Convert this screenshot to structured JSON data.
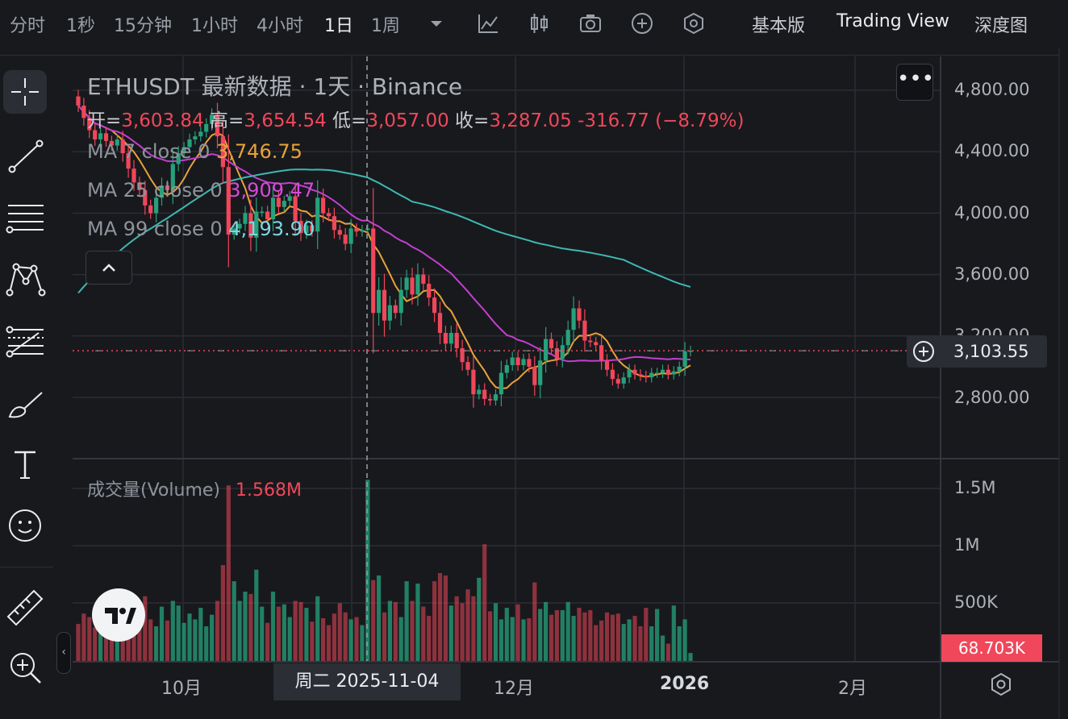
{
  "toolbar": {
    "intervals": [
      "分时",
      "1秒",
      "15分钟",
      "1小时",
      "4小时",
      "1日",
      "1周"
    ],
    "active_interval": "1日",
    "views": [
      "基本版",
      "Trading View",
      "深度图"
    ],
    "icons": [
      "chevron-down-icon",
      "indicator-line-icon",
      "candles-icon",
      "camera-icon",
      "plus-circle-icon",
      "hexagon-settings-icon"
    ]
  },
  "left_tools": [
    "crosshair-icon",
    "trend-line-icon",
    "horizontal-lines-icon",
    "pattern-icon",
    "fib-icon",
    "brush-icon",
    "text-icon",
    "emoji-icon",
    "ruler-icon",
    "zoom-in-icon"
  ],
  "legend": {
    "title": "ETHUSDT 最新数据 · 1天 · Binance",
    "ohlc": [
      {
        "label": "开=",
        "value": "3,603.84"
      },
      {
        "label": "高=",
        "value": "3,654.54"
      },
      {
        "label": "低=",
        "value": "3,057.00"
      },
      {
        "label": "收=",
        "value": "3,287.05"
      }
    ],
    "change": "-316.77 (−8.79%)",
    "ma7": {
      "label": "MA 7 close 0",
      "value": "3,746.75"
    },
    "ma25": {
      "label": "MA 25 close 0",
      "value": "3,909.47"
    },
    "ma99": {
      "label": "MA 99 close 0",
      "value": "4,193.90"
    },
    "more": "•••"
  },
  "price_axis": {
    "ticks": [
      "4,800.00",
      "4,400.00",
      "4,000.00",
      "3,600.00",
      "3,200.00",
      "2,800.00"
    ],
    "current_price": "3,103.55"
  },
  "volume": {
    "label": "成交量(Volume)",
    "value": "1.568M",
    "ticks": [
      "1.5M",
      "1M",
      "500K"
    ],
    "current": "68.703K"
  },
  "time_axis": {
    "labels": [
      {
        "text": "10月",
        "bold": false
      },
      {
        "text": "12月",
        "bold": false
      },
      {
        "text": "2026",
        "bold": true
      },
      {
        "text": "2月",
        "bold": false
      }
    ],
    "crosshair_date": "周二 2025-11-04"
  },
  "colors": {
    "up": "#26a17b",
    "down": "#f0475a",
    "ma7": "#e8a23a",
    "ma25": "#c23fd0",
    "ma99": "#3eb8b4",
    "background": "#18191d"
  },
  "chart_data": {
    "type": "candlestick",
    "symbol": "ETHUSDT",
    "interval": "1天",
    "exchange": "Binance",
    "ylim": [
      2600,
      5000
    ],
    "x_start": "2025-09-12",
    "x_end": "2026-01-04",
    "selected": {
      "date": "2025-11-04",
      "open": 3603.84,
      "high": 3654.54,
      "low": 3057.0,
      "close": 3287.05
    },
    "close": [
      4700,
      4620,
      4540,
      4480,
      4520,
      4470,
      4440,
      4480,
      4390,
      4290,
      4200,
      4150,
      4050,
      4000,
      4100,
      4180,
      4150,
      4320,
      4390,
      4430,
      4480,
      4500,
      4530,
      4580,
      4640,
      4500,
      4300,
      3860,
      3900,
      3930,
      4000,
      3840,
      4010,
      4010,
      3960,
      4100,
      4040,
      4080,
      4110,
      3950,
      3870,
      3920,
      3880,
      4100,
      4000,
      3980,
      3890,
      3860,
      3800,
      3900,
      3880,
      3890,
      3900,
      3350,
      3500,
      3300,
      3400,
      3350,
      3500,
      3580,
      3470,
      3600,
      3540,
      3450,
      3350,
      3220,
      3150,
      3220,
      3120,
      3030,
      2980,
      2820,
      2850,
      2790,
      2780,
      2820,
      2960,
      3010,
      3060,
      3010,
      3050,
      3000,
      2880,
      3040,
      3180,
      3120,
      3050,
      3140,
      3240,
      3380,
      3300,
      3170,
      3160,
      3140,
      3040,
      2980,
      2920,
      2890,
      2930,
      2980,
      2950,
      2940,
      2930,
      2960,
      2960,
      2980,
      2950,
      2970,
      3000,
      3100,
      3103.55
    ],
    "volume": [
      320,
      410,
      380,
      290,
      260,
      300,
      350,
      240,
      330,
      280,
      300,
      420,
      560,
      360,
      300,
      470,
      350,
      520,
      480,
      330,
      410,
      360,
      460,
      300,
      400,
      520,
      830,
      1520,
      690,
      520,
      600,
      580,
      790,
      470,
      330,
      600,
      470,
      490,
      380,
      520,
      510,
      460,
      340,
      560,
      370,
      310,
      410,
      500,
      420,
      360,
      380,
      310,
      1568,
      700,
      740,
      420,
      520,
      510,
      380,
      690,
      520,
      670,
      470,
      390,
      690,
      760,
      740,
      480,
      560,
      500,
      620,
      560,
      720,
      1010,
      430,
      500,
      360,
      460,
      380,
      490,
      360,
      370,
      680,
      450,
      510,
      400,
      440,
      440,
      510,
      390,
      460,
      420,
      440,
      310,
      350,
      420,
      400,
      410,
      320,
      360,
      390,
      300,
      460,
      300,
      450,
      220,
      150,
      480,
      300,
      360,
      68.703
    ],
    "ma7_last": 3746.75,
    "ma25_last": 3909.47,
    "ma99_last": 4193.9
  }
}
